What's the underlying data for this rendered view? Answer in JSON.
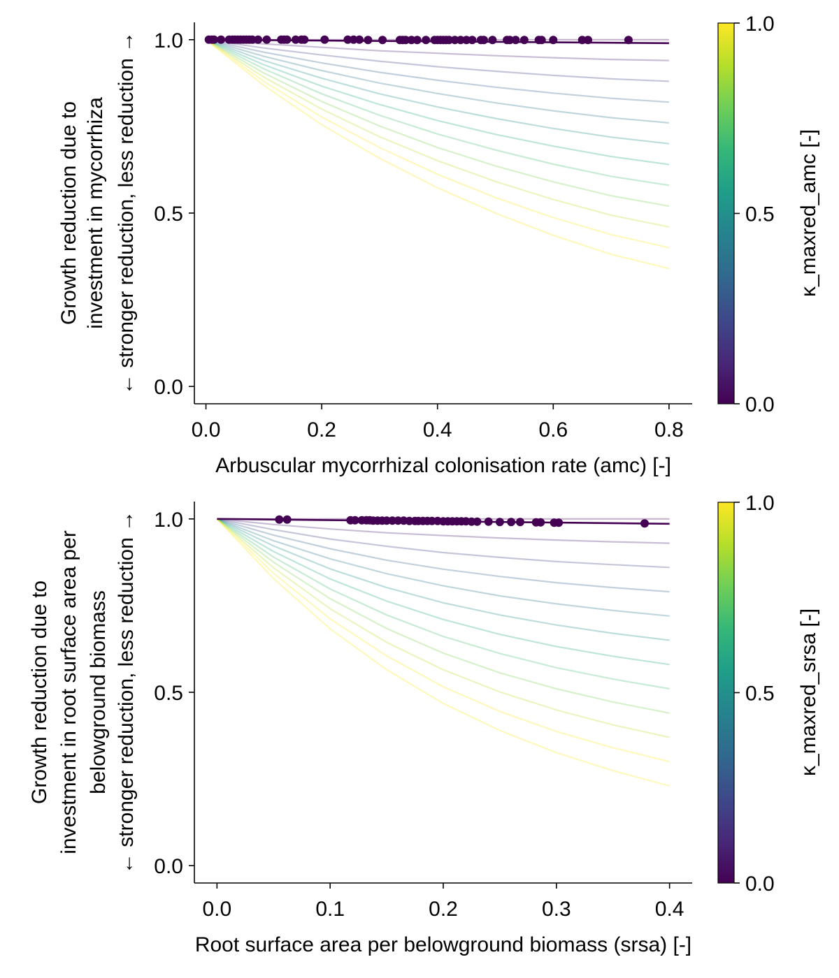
{
  "chart_data": [
    {
      "type": "line",
      "id": "amc",
      "xlabel": "Arbuscular mycorrhizal colonisation rate (amc) [-]",
      "ylabel_lines": [
        "Growth reduction due to",
        "investment in mycorrhiza",
        "← stronger reduction, less reduction →"
      ],
      "xlim": [
        -0.02,
        0.84
      ],
      "ylim": [
        -0.05,
        1.05
      ],
      "xticks": [
        0.0,
        0.2,
        0.4,
        0.6,
        0.8
      ],
      "xtick_labels": [
        "0.0",
        "0.2",
        "0.4",
        "0.6",
        "0.8"
      ],
      "yticks": [
        0.0,
        0.5,
        1.0
      ],
      "ytick_labels": [
        "0.0",
        "0.5",
        "1.0"
      ],
      "x_max": 0.8,
      "grid": false,
      "background_lines": [
        {
          "name": "",
          "kappa": 0.0,
          "x": [
            0.0,
            0.8
          ],
          "y": [
            1.0,
            1.0
          ]
        },
        {
          "name": "",
          "kappa": 0.1,
          "x": [
            0.0,
            0.1,
            0.2,
            0.3,
            0.4,
            0.5,
            0.6,
            0.7,
            0.8
          ],
          "y": [
            1.0,
            0.988,
            0.978,
            0.968,
            0.961,
            0.954,
            0.948,
            0.943,
            0.94
          ]
        },
        {
          "name": "",
          "kappa": 0.2,
          "x": [
            0.0,
            0.1,
            0.2,
            0.3,
            0.4,
            0.5,
            0.6,
            0.7,
            0.8
          ],
          "y": [
            1.0,
            0.976,
            0.956,
            0.938,
            0.922,
            0.909,
            0.897,
            0.887,
            0.88
          ]
        },
        {
          "name": "",
          "kappa": 0.3,
          "x": [
            0.0,
            0.1,
            0.2,
            0.3,
            0.4,
            0.5,
            0.6,
            0.7,
            0.8
          ],
          "y": [
            1.0,
            0.964,
            0.933,
            0.906,
            0.883,
            0.863,
            0.846,
            0.831,
            0.82
          ]
        },
        {
          "name": "",
          "kappa": 0.4,
          "x": [
            0.0,
            0.1,
            0.2,
            0.3,
            0.4,
            0.5,
            0.6,
            0.7,
            0.8
          ],
          "y": [
            1.0,
            0.952,
            0.911,
            0.875,
            0.845,
            0.818,
            0.795,
            0.775,
            0.76
          ]
        },
        {
          "name": "",
          "kappa": 0.5,
          "x": [
            0.0,
            0.1,
            0.2,
            0.3,
            0.4,
            0.5,
            0.6,
            0.7,
            0.8
          ],
          "y": [
            1.0,
            0.94,
            0.889,
            0.844,
            0.806,
            0.773,
            0.744,
            0.719,
            0.7
          ]
        },
        {
          "name": "",
          "kappa": 0.6,
          "x": [
            0.0,
            0.1,
            0.2,
            0.3,
            0.4,
            0.5,
            0.6,
            0.7,
            0.8
          ],
          "y": [
            1.0,
            0.928,
            0.866,
            0.813,
            0.767,
            0.727,
            0.693,
            0.663,
            0.64
          ]
        },
        {
          "name": "",
          "kappa": 0.7,
          "x": [
            0.0,
            0.1,
            0.2,
            0.3,
            0.4,
            0.5,
            0.6,
            0.7,
            0.8
          ],
          "y": [
            1.0,
            0.916,
            0.844,
            0.782,
            0.728,
            0.682,
            0.641,
            0.606,
            0.58
          ]
        },
        {
          "name": "",
          "kappa": 0.8,
          "x": [
            0.0,
            0.1,
            0.2,
            0.3,
            0.4,
            0.5,
            0.6,
            0.7,
            0.8
          ],
          "y": [
            1.0,
            0.904,
            0.822,
            0.751,
            0.689,
            0.636,
            0.59,
            0.55,
            0.52
          ]
        },
        {
          "name": "",
          "kappa": 0.9,
          "x": [
            0.0,
            0.1,
            0.2,
            0.3,
            0.4,
            0.5,
            0.6,
            0.7,
            0.8
          ],
          "y": [
            1.0,
            0.892,
            0.8,
            0.72,
            0.651,
            0.591,
            0.539,
            0.494,
            0.46
          ]
        },
        {
          "name": "",
          "kappa": 1.0,
          "x": [
            0.0,
            0.1,
            0.2,
            0.3,
            0.4,
            0.5,
            0.6,
            0.7,
            0.8
          ],
          "y": [
            1.0,
            0.88,
            0.777,
            0.689,
            0.612,
            0.545,
            0.487,
            0.438,
            0.4
          ]
        },
        {
          "name": "",
          "kappa": 1.1,
          "x": [
            0.0,
            0.1,
            0.2,
            0.3,
            0.4,
            0.5,
            0.6,
            0.7,
            0.8
          ],
          "y": [
            1.0,
            0.868,
            0.755,
            0.658,
            0.573,
            0.5,
            0.436,
            0.381,
            0.34
          ]
        }
      ],
      "fitted_line": {
        "name": "",
        "kappa": 0.0,
        "x": [
          0.0,
          0.8
        ],
        "y": [
          1.0,
          0.99
        ]
      },
      "points": {
        "x": [
          0.005,
          0.01,
          0.014,
          0.026,
          0.04,
          0.046,
          0.05,
          0.055,
          0.06,
          0.065,
          0.07,
          0.075,
          0.08,
          0.09,
          0.105,
          0.13,
          0.135,
          0.14,
          0.155,
          0.165,
          0.17,
          0.205,
          0.245,
          0.255,
          0.265,
          0.28,
          0.305,
          0.335,
          0.34,
          0.345,
          0.355,
          0.365,
          0.38,
          0.395,
          0.4,
          0.405,
          0.41,
          0.415,
          0.42,
          0.43,
          0.44,
          0.45,
          0.46,
          0.475,
          0.48,
          0.495,
          0.52,
          0.525,
          0.535,
          0.55,
          0.575,
          0.58,
          0.6,
          0.65,
          0.66,
          0.73
        ],
        "y": [
          1.0,
          1.0,
          1.0,
          1.0,
          1.0,
          1.0,
          1.0,
          1.0,
          1.0,
          1.0,
          1.0,
          1.0,
          1.0,
          1.0,
          1.0,
          1.0,
          1.0,
          1.0,
          1.0,
          1.0,
          1.0,
          1.0,
          1.0,
          1.0,
          1.0,
          0.999,
          0.999,
          0.999,
          0.999,
          0.999,
          0.999,
          0.999,
          0.999,
          0.999,
          0.999,
          0.999,
          0.999,
          0.999,
          0.999,
          0.999,
          0.999,
          0.999,
          0.999,
          0.999,
          0.999,
          0.999,
          0.999,
          0.999,
          0.999,
          0.999,
          0.999,
          0.999,
          0.999,
          0.999,
          0.999,
          0.999
        ],
        "color": "#440154"
      },
      "colorbar": {
        "label": "κ_maxred_amc [-]",
        "range": [
          0.0,
          1.0
        ],
        "ticks": [
          0.0,
          0.5,
          1.0
        ],
        "tick_labels": [
          "0.0",
          "0.5",
          "1.0"
        ],
        "colormap": "viridis",
        "colors": [
          "#440154",
          "#482878",
          "#3e4989",
          "#31688e",
          "#26828e",
          "#1f9e89",
          "#35b779",
          "#6ece58",
          "#b5de2b",
          "#fde725"
        ]
      }
    },
    {
      "type": "line",
      "id": "srsa",
      "xlabel": "Root surface area per belowground biomass (srsa) [-]",
      "ylabel_lines": [
        "Growth reduction due to",
        "investment in root surface area per",
        "belowground biomass",
        "← stronger reduction, less reduction →"
      ],
      "xlim": [
        -0.02,
        0.42
      ],
      "ylim": [
        -0.05,
        1.05
      ],
      "xticks": [
        0.0,
        0.1,
        0.2,
        0.3,
        0.4
      ],
      "xtick_labels": [
        "0.0",
        "0.1",
        "0.2",
        "0.3",
        "0.4"
      ],
      "yticks": [
        0.0,
        0.5,
        1.0
      ],
      "ytick_labels": [
        "0.0",
        "0.5",
        "1.0"
      ],
      "x_max": 0.4,
      "grid": false,
      "background_lines": [
        {
          "name": "",
          "kappa": 0.0,
          "x": [
            0.0,
            0.4
          ],
          "y": [
            1.0,
            1.0
          ]
        },
        {
          "name": "",
          "kappa": 0.1,
          "x": [
            0.0,
            0.05,
            0.1,
            0.15,
            0.2,
            0.25,
            0.3,
            0.35,
            0.4
          ],
          "y": [
            1.0,
            0.984,
            0.971,
            0.96,
            0.952,
            0.945,
            0.939,
            0.934,
            0.93
          ]
        },
        {
          "name": "",
          "kappa": 0.2,
          "x": [
            0.0,
            0.05,
            0.1,
            0.15,
            0.2,
            0.25,
            0.3,
            0.35,
            0.4
          ],
          "y": [
            1.0,
            0.969,
            0.942,
            0.921,
            0.903,
            0.889,
            0.877,
            0.868,
            0.86
          ]
        },
        {
          "name": "",
          "kappa": 0.3,
          "x": [
            0.0,
            0.05,
            0.1,
            0.15,
            0.2,
            0.25,
            0.3,
            0.35,
            0.4
          ],
          "y": [
            1.0,
            0.953,
            0.914,
            0.881,
            0.855,
            0.834,
            0.816,
            0.802,
            0.79
          ]
        },
        {
          "name": "",
          "kappa": 0.4,
          "x": [
            0.0,
            0.05,
            0.1,
            0.15,
            0.2,
            0.25,
            0.3,
            0.35,
            0.4
          ],
          "y": [
            1.0,
            0.937,
            0.885,
            0.842,
            0.807,
            0.778,
            0.755,
            0.736,
            0.72
          ]
        },
        {
          "name": "",
          "kappa": 0.5,
          "x": [
            0.0,
            0.05,
            0.1,
            0.15,
            0.2,
            0.25,
            0.3,
            0.35,
            0.4
          ],
          "y": [
            1.0,
            0.922,
            0.856,
            0.802,
            0.758,
            0.723,
            0.694,
            0.67,
            0.65
          ]
        },
        {
          "name": "",
          "kappa": 0.6,
          "x": [
            0.0,
            0.05,
            0.1,
            0.15,
            0.2,
            0.25,
            0.3,
            0.35,
            0.4
          ],
          "y": [
            1.0,
            0.906,
            0.827,
            0.763,
            0.71,
            0.667,
            0.632,
            0.604,
            0.58
          ]
        },
        {
          "name": "",
          "kappa": 0.7,
          "x": [
            0.0,
            0.05,
            0.1,
            0.15,
            0.2,
            0.25,
            0.3,
            0.35,
            0.4
          ],
          "y": [
            1.0,
            0.89,
            0.798,
            0.723,
            0.661,
            0.612,
            0.571,
            0.538,
            0.51
          ]
        },
        {
          "name": "",
          "kappa": 0.8,
          "x": [
            0.0,
            0.05,
            0.1,
            0.15,
            0.2,
            0.25,
            0.3,
            0.35,
            0.4
          ],
          "y": [
            1.0,
            0.875,
            0.77,
            0.684,
            0.613,
            0.556,
            0.51,
            0.472,
            0.44
          ]
        },
        {
          "name": "",
          "kappa": 0.9,
          "x": [
            0.0,
            0.05,
            0.1,
            0.15,
            0.2,
            0.25,
            0.3,
            0.35,
            0.4
          ],
          "y": [
            1.0,
            0.859,
            0.741,
            0.644,
            0.565,
            0.501,
            0.449,
            0.406,
            0.37
          ]
        },
        {
          "name": "",
          "kappa": 1.0,
          "x": [
            0.0,
            0.05,
            0.1,
            0.15,
            0.2,
            0.25,
            0.3,
            0.35,
            0.4
          ],
          "y": [
            1.0,
            0.843,
            0.712,
            0.605,
            0.516,
            0.445,
            0.387,
            0.34,
            0.3
          ]
        },
        {
          "name": "",
          "kappa": 1.1,
          "x": [
            0.0,
            0.05,
            0.1,
            0.15,
            0.2,
            0.25,
            0.3,
            0.35,
            0.4
          ],
          "y": [
            1.0,
            0.828,
            0.683,
            0.565,
            0.468,
            0.39,
            0.326,
            0.274,
            0.23
          ]
        }
      ],
      "fitted_line": {
        "name": "",
        "kappa": 0.0,
        "x": [
          0.0,
          0.4
        ],
        "y": [
          1.0,
          0.986
        ]
      },
      "points": {
        "x": [
          0.055,
          0.062,
          0.118,
          0.122,
          0.128,
          0.132,
          0.135,
          0.138,
          0.142,
          0.146,
          0.15,
          0.155,
          0.16,
          0.165,
          0.17,
          0.175,
          0.178,
          0.182,
          0.186,
          0.19,
          0.195,
          0.2,
          0.204,
          0.208,
          0.212,
          0.216,
          0.22,
          0.225,
          0.23,
          0.24,
          0.25,
          0.26,
          0.268,
          0.282,
          0.286,
          0.298,
          0.302,
          0.378
        ],
        "y": [
          0.998,
          0.998,
          0.996,
          0.996,
          0.996,
          0.996,
          0.996,
          0.995,
          0.995,
          0.995,
          0.995,
          0.995,
          0.995,
          0.995,
          0.994,
          0.994,
          0.994,
          0.994,
          0.994,
          0.994,
          0.994,
          0.993,
          0.993,
          0.993,
          0.993,
          0.993,
          0.993,
          0.992,
          0.992,
          0.992,
          0.991,
          0.991,
          0.991,
          0.99,
          0.99,
          0.989,
          0.989,
          0.987
        ],
        "color": "#440154"
      },
      "colorbar": {
        "label": "κ_maxred_srsa [-]",
        "range": [
          0.0,
          1.0
        ],
        "ticks": [
          0.0,
          0.5,
          1.0
        ],
        "tick_labels": [
          "0.0",
          "0.5",
          "1.0"
        ],
        "colormap": "viridis",
        "colors": [
          "#440154",
          "#482878",
          "#3e4989",
          "#31688e",
          "#26828e",
          "#1f9e89",
          "#35b779",
          "#6ece58",
          "#b5de2b",
          "#fde725"
        ]
      }
    }
  ]
}
